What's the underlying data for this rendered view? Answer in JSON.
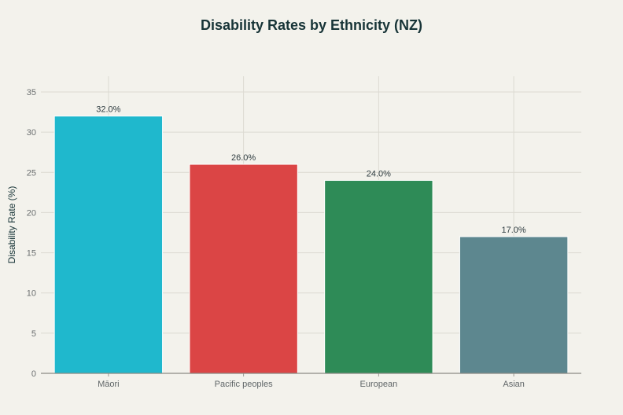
{
  "chart_data": {
    "type": "bar",
    "title": "Disability Rates by Ethnicity (NZ)",
    "xlabel": "",
    "ylabel": "Disability Rate (%)",
    "categories": [
      "Māori",
      "Pacific peoples",
      "European",
      "Asian"
    ],
    "values": [
      32.0,
      26.0,
      24.0,
      17.0
    ],
    "data_labels": [
      "32.0%",
      "26.0%",
      "24.0%",
      "17.0%"
    ],
    "colors": [
      "#1fb8cd",
      "#db4545",
      "#2e8b57",
      "#5d878f"
    ],
    "ylim": [
      0,
      35
    ],
    "yticks": [
      0,
      5,
      10,
      15,
      20,
      25,
      30,
      35
    ],
    "ytick_labels": [
      "0",
      "5",
      "10",
      "15",
      "20",
      "25",
      "30",
      "35"
    ],
    "grid": true,
    "legend": "none"
  }
}
